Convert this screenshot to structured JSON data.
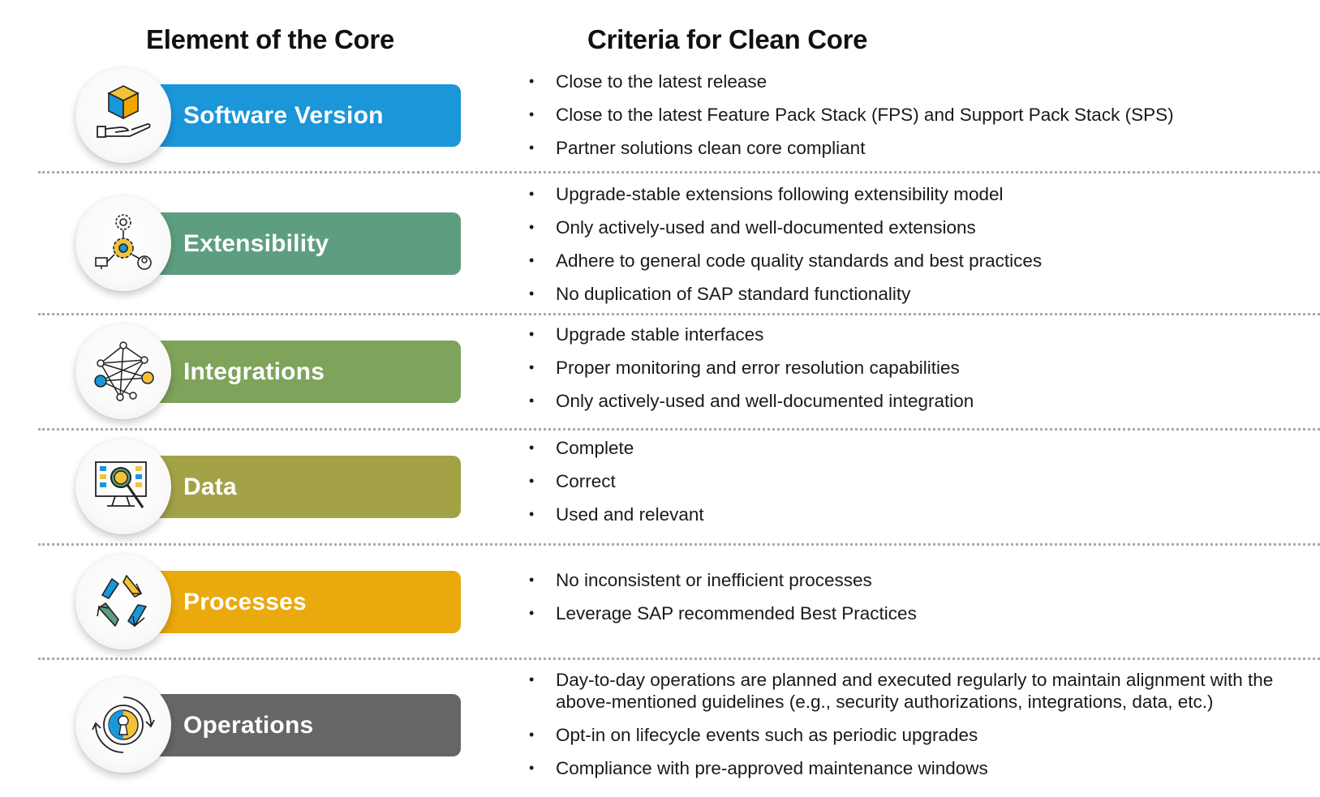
{
  "headers": {
    "element": "Element of the Core",
    "criteria": "Criteria for Clean Core"
  },
  "rows": [
    {
      "label": "Software Version",
      "color": "#1a96d9",
      "icon": "software-box-hand-icon",
      "criteria": [
        "Close to the latest release",
        "Close to the latest Feature Pack Stack (FPS) and Support Pack Stack (SPS)",
        "Partner solutions clean core compliant"
      ]
    },
    {
      "label": "Extensibility",
      "color": "#5e9e80",
      "icon": "extensibility-gears-icon",
      "criteria": [
        "Upgrade-stable extensions following extensibility model",
        "Only actively-used and well-documented extensions",
        "Adhere to general code quality standards and best practices",
        "No duplication of SAP standard functionality"
      ]
    },
    {
      "label": "Integrations",
      "color": "#7ea35a",
      "icon": "network-nodes-icon",
      "criteria": [
        "Upgrade stable interfaces",
        "Proper monitoring and error resolution capabilities",
        "Only actively-used and well-documented integration"
      ]
    },
    {
      "label": "Data",
      "color": "#a3a246",
      "icon": "monitor-magnifier-icon",
      "criteria": [
        "Complete",
        "Correct",
        "Used and relevant"
      ]
    },
    {
      "label": "Processes",
      "color": "#eaa90c",
      "icon": "cycle-arrows-icon",
      "criteria": [
        "No inconsistent or inefficient processes",
        "Leverage SAP recommended Best Practices"
      ]
    },
    {
      "label": "Operations",
      "color": "#666666",
      "icon": "keyhole-lock-icon",
      "criteria": [
        "Day-to-day operations are planned and executed regularly to maintain alignment with the above-mentioned guidelines (e.g., security authorizations, integrations, data, etc.)",
        "Opt-in on lifecycle events such as periodic upgrades",
        "Compliance with pre-approved maintenance windows"
      ]
    }
  ]
}
